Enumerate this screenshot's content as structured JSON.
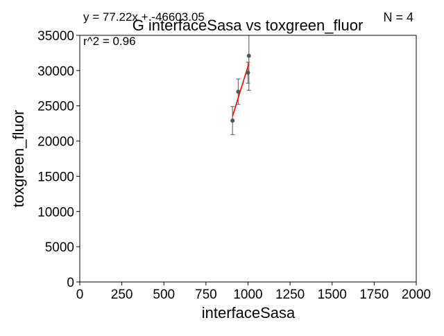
{
  "chart_data": {
    "type": "scatter",
    "title": "G interfaceSasa vs toxgreen_fluor",
    "xlabel": "interfaceSasa",
    "ylabel": "toxgreen_fluor",
    "xlim": [
      0,
      2000
    ],
    "ylim": [
      0,
      35000
    ],
    "xticks": [
      0,
      250,
      500,
      750,
      1000,
      1250,
      1500,
      1750,
      2000
    ],
    "yticks": [
      0,
      5000,
      10000,
      15000,
      20000,
      25000,
      30000,
      35000
    ],
    "grid": false,
    "annotations": {
      "equation": "y = 77.22x + -46603.05",
      "n_label": "N = 4",
      "r2_label": "r^2 = 0.96"
    },
    "series": [
      {
        "points": [
          {
            "x": 908,
            "y": 22900,
            "err": 2000
          },
          {
            "x": 942,
            "y": 27000,
            "err": 1800
          },
          {
            "x": 1000,
            "y": 29700,
            "err": 1500
          },
          {
            "x": 1005,
            "y": 32100,
            "err": 4900
          }
        ],
        "color": "#555555",
        "errorbar_color": "#777777"
      }
    ],
    "fit_line": {
      "slope": 77.22,
      "intercept": -46603.05,
      "x_range": [
        908,
        1005
      ],
      "color": "#ff0000"
    }
  }
}
